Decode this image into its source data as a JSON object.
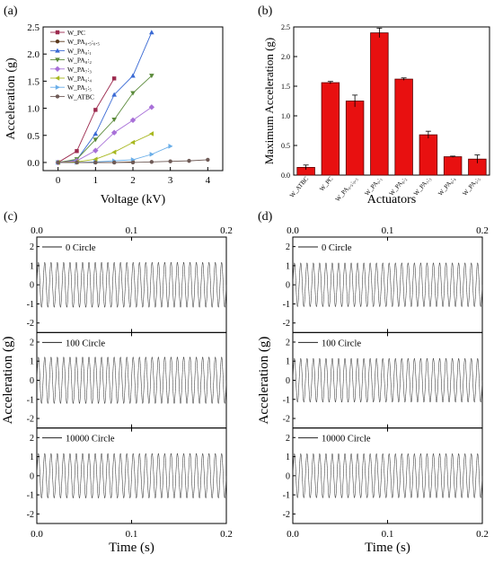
{
  "panels": {
    "a": {
      "label": "(a)"
    },
    "b": {
      "label": "(b)"
    },
    "c": {
      "label": "(c)"
    },
    "d": {
      "label": "(d)"
    }
  },
  "chart_data": [
    {
      "id": "a",
      "type": "line",
      "xlabel": "Voltage (kV)",
      "ylabel": "Acceleration (g)",
      "xlim": [
        -0.4,
        4.4
      ],
      "ylim": [
        -0.15,
        2.5
      ],
      "xticks": [
        "0",
        "1",
        "2",
        "3",
        "4"
      ],
      "yticks": [
        "0.0",
        "0.5",
        "1.0",
        "1.5",
        "2.0",
        "2.5"
      ],
      "legend_position": "top-left",
      "series": [
        {
          "name": "W_PC",
          "color": "#9c2a4e",
          "marker": "square",
          "x": [
            0,
            0.5,
            1,
            1.5
          ],
          "y": [
            0,
            0.21,
            0.97,
            1.55
          ]
        },
        {
          "name": "W_PA₀.₅:₀.₅",
          "color": "#5c3a1e",
          "marker": "circle",
          "x": [
            0,
            0.5,
            1,
            1.5,
            2
          ],
          "y": [
            0,
            0.0,
            0.0,
            0.0,
            0.01
          ]
        },
        {
          "name": "W_PA₀:₁",
          "color": "#3a6ad4",
          "marker": "triangle-up",
          "x": [
            0,
            0.5,
            1,
            1.5,
            2,
            2.5
          ],
          "y": [
            0,
            0.05,
            0.53,
            1.25,
            1.6,
            2.4
          ]
        },
        {
          "name": "W_PA₈:₂",
          "color": "#5a8a3a",
          "marker": "triangle-down",
          "x": [
            0,
            0.5,
            1,
            1.5,
            2,
            2.5
          ],
          "y": [
            0,
            0.06,
            0.42,
            0.79,
            1.28,
            1.6
          ]
        },
        {
          "name": "W_PA₇:₃",
          "color": "#a870d8",
          "marker": "diamond",
          "x": [
            0,
            0.5,
            1,
            1.5,
            2,
            2.5
          ],
          "y": [
            0,
            0.03,
            0.22,
            0.55,
            0.78,
            1.02
          ]
        },
        {
          "name": "W_PA₆:₄",
          "color": "#a8b820",
          "marker": "triangle-left",
          "x": [
            0,
            0.5,
            1,
            1.5,
            2,
            2.5
          ],
          "y": [
            0,
            0.01,
            0.06,
            0.19,
            0.37,
            0.53
          ]
        },
        {
          "name": "W_PA₅:₅",
          "color": "#6aaee8",
          "marker": "triangle-right",
          "x": [
            0,
            0.5,
            1,
            1.5,
            2,
            2.5,
            3
          ],
          "y": [
            0,
            0.0,
            0.01,
            0.03,
            0.05,
            0.15,
            0.3
          ]
        },
        {
          "name": "W_ATBC",
          "color": "#6e5a56",
          "marker": "circle",
          "x": [
            0,
            0.5,
            1,
            1.5,
            2,
            2.5,
            3,
            3.5,
            4
          ],
          "y": [
            0,
            0.0,
            0.0,
            0.0,
            0.0,
            0.01,
            0.02,
            0.03,
            0.05
          ]
        }
      ]
    },
    {
      "id": "b",
      "type": "bar",
      "xlabel": "Actuators",
      "ylabel": "Maximum Acceleration (g)",
      "ylim": [
        0,
        2.5
      ],
      "yticks": [
        "0.0",
        "0.5",
        "1.0",
        "1.5",
        "2.0",
        "2.5"
      ],
      "bar_color": "#e81010",
      "categories": [
        "W_ATBC",
        "W_PC",
        "W_PA₀.₅:₀.₅",
        "W_PA₀:₁",
        "W_PA₈:₂",
        "W_PA₇:₃",
        "W_PA₆:₄",
        "W_PA₅:₅"
      ],
      "values": [
        0.13,
        1.56,
        1.25,
        2.4,
        1.62,
        0.68,
        0.31,
        0.27
      ],
      "errors": [
        0.04,
        0.02,
        0.1,
        0.08,
        0.02,
        0.06,
        0.01,
        0.07
      ]
    },
    {
      "id": "c",
      "type": "line",
      "xlabel": "Time (s)",
      "ylabel": "Acceleration (g)",
      "xlim": [
        0.0,
        0.2
      ],
      "xticks": [
        "0.0",
        "0.1",
        "0.2"
      ],
      "ylim": [
        -2.5,
        2.5
      ],
      "yticks": [
        "-2",
        "-1",
        "0",
        "1",
        "2"
      ],
      "frequency_hz": 150,
      "subplots": [
        {
          "legend": "0 Circle",
          "amplitude": 1.18
        },
        {
          "legend": "100 Circle",
          "amplitude": 1.22
        },
        {
          "legend": "10000 Circle",
          "amplitude": 1.17
        }
      ]
    },
    {
      "id": "d",
      "type": "line",
      "xlabel": "Time (s)",
      "ylabel": "Acceleration (g)",
      "xlim": [
        0.0,
        0.2
      ],
      "xticks": [
        "0.0",
        "0.1",
        "0.2"
      ],
      "ylim": [
        -2.5,
        2.5
      ],
      "yticks": [
        "-2",
        "-1",
        "0",
        "1",
        "2"
      ],
      "frequency_hz": 150,
      "subplots": [
        {
          "legend": "0 Circle",
          "amplitude": 1.15
        },
        {
          "legend": "100 Circle",
          "amplitude": 1.15
        },
        {
          "legend": "10000 Circle",
          "amplitude": 1.16
        }
      ]
    }
  ]
}
